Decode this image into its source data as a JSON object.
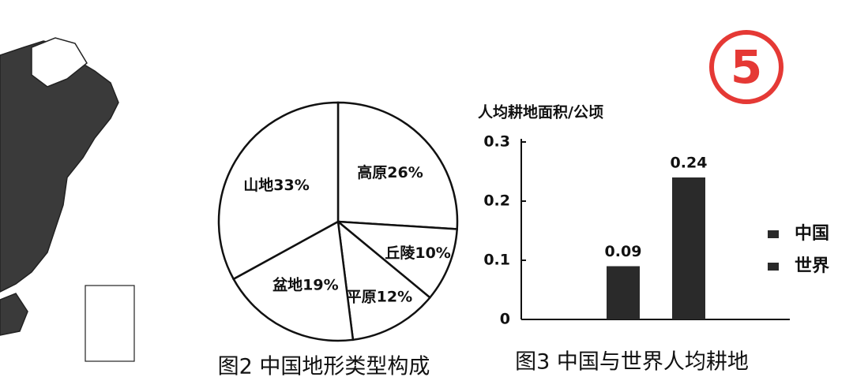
{
  "badge": "5",
  "chart_data": [
    {
      "type": "pie",
      "caption": "图2 中国地形类型构成",
      "categories": [
        "高原",
        "丘陵",
        "平原",
        "盆地",
        "山地"
      ],
      "values": [
        26,
        10,
        12,
        19,
        33
      ],
      "value_labels": [
        "26%",
        "10%",
        "12%",
        "19%",
        "33%"
      ],
      "color": "#ffffff"
    },
    {
      "type": "bar",
      "caption": "图3 中国与世界人均耕地",
      "ylabel": "人均耕地面积/公顷",
      "categories": [
        null
      ],
      "series": [
        {
          "name": "中国",
          "color": "#2a2a2a",
          "values": [
            0.09
          ]
        },
        {
          "name": "世界",
          "color": "#2a2a2a",
          "values": [
            0.24
          ]
        }
      ],
      "ylim": [
        0,
        0.3
      ],
      "yticks": [
        0,
        0.1,
        0.2,
        0.3
      ],
      "grid": false
    }
  ]
}
